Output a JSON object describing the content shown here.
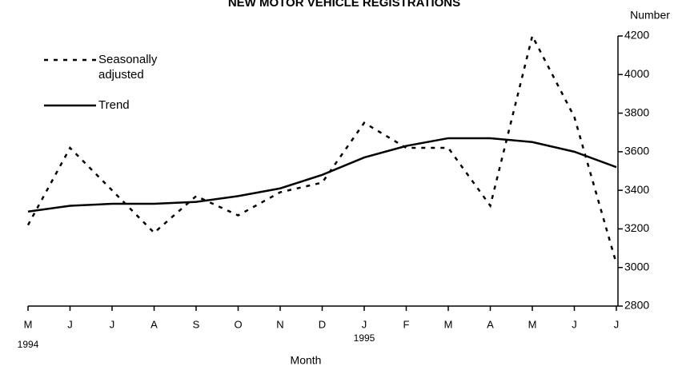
{
  "chart_data": {
    "type": "line",
    "title": "NEW MOTOR VEHICLE REGISTRATIONS",
    "ylabel": "Number",
    "xlabel": "Month",
    "categories": [
      "M",
      "J",
      "J",
      "A",
      "S",
      "O",
      "N",
      "D",
      "J",
      "F",
      "M",
      "A",
      "M",
      "J",
      "J"
    ],
    "category_years": [
      "1994",
      null,
      null,
      null,
      null,
      null,
      null,
      null,
      "1995",
      null,
      null,
      null,
      null,
      null,
      null
    ],
    "series": [
      {
        "name": "Seasonally adjusted",
        "color": "#000000",
        "style": "dashed",
        "values": [
          3220,
          3620,
          3400,
          3180,
          3370,
          3270,
          3390,
          3440,
          3750,
          3620,
          3620,
          3320,
          4200,
          3780,
          3020
        ]
      },
      {
        "name": "Trend",
        "color": "#000000",
        "style": "solid",
        "values": [
          3290,
          3320,
          3330,
          3330,
          3340,
          3370,
          3410,
          3480,
          3570,
          3630,
          3670,
          3670,
          3650,
          3600,
          3520
        ]
      }
    ],
    "ylim": [
      2800,
      4200
    ],
    "yticks": [
      2800,
      3000,
      3200,
      3400,
      3600,
      3800,
      4000,
      4200
    ],
    "legend": "upper left",
    "grid": false
  }
}
